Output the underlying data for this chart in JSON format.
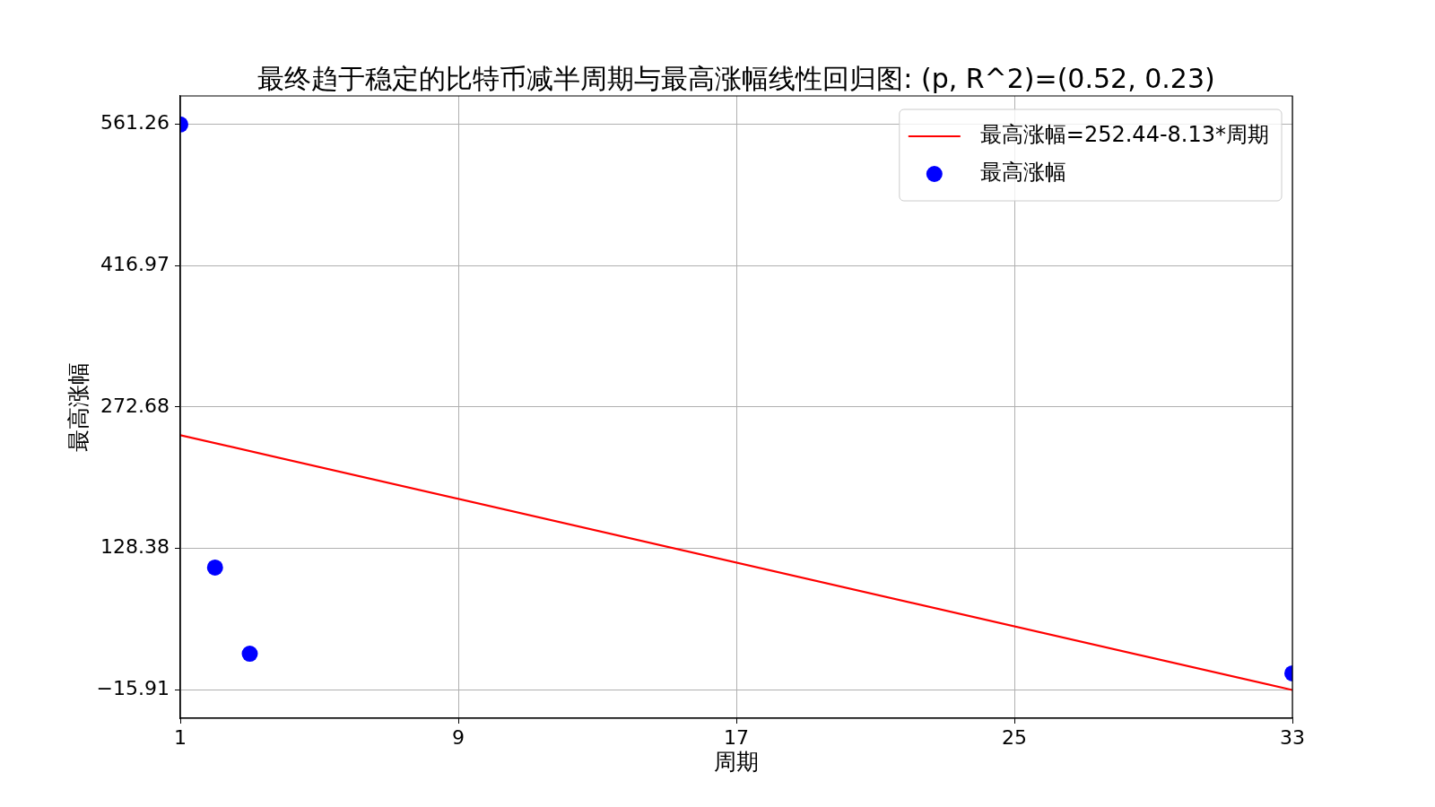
{
  "chart_data": {
    "type": "scatter",
    "title": "最终趋于稳定的比特币减半周期与最高涨幅线性回归图: (p, R^2)=(0.52, 0.23)",
    "xlabel": "周期",
    "ylabel": "最高涨幅",
    "series": [
      {
        "name": "最高涨幅=252.44-8.13*周期",
        "type": "line",
        "color": "#ff0000",
        "marker": "none",
        "x": [
          1,
          33
        ],
        "values": [
          244,
          -16
        ]
      },
      {
        "name": "最高涨幅",
        "color": "#0000ff",
        "marker": "circle",
        "x": [
          1,
          2,
          3,
          33
        ],
        "values": [
          561,
          109,
          21,
          1
        ]
      }
    ],
    "xlim": [
      1,
      33
    ],
    "xticks": [
      1,
      9,
      17,
      25,
      33
    ],
    "ylim": [
      -44.8,
      590.1
    ],
    "yticks": [
      561.26,
      416.97,
      272.68,
      128.38,
      -15.91
    ],
    "grid": true,
    "legend": "top right"
  }
}
